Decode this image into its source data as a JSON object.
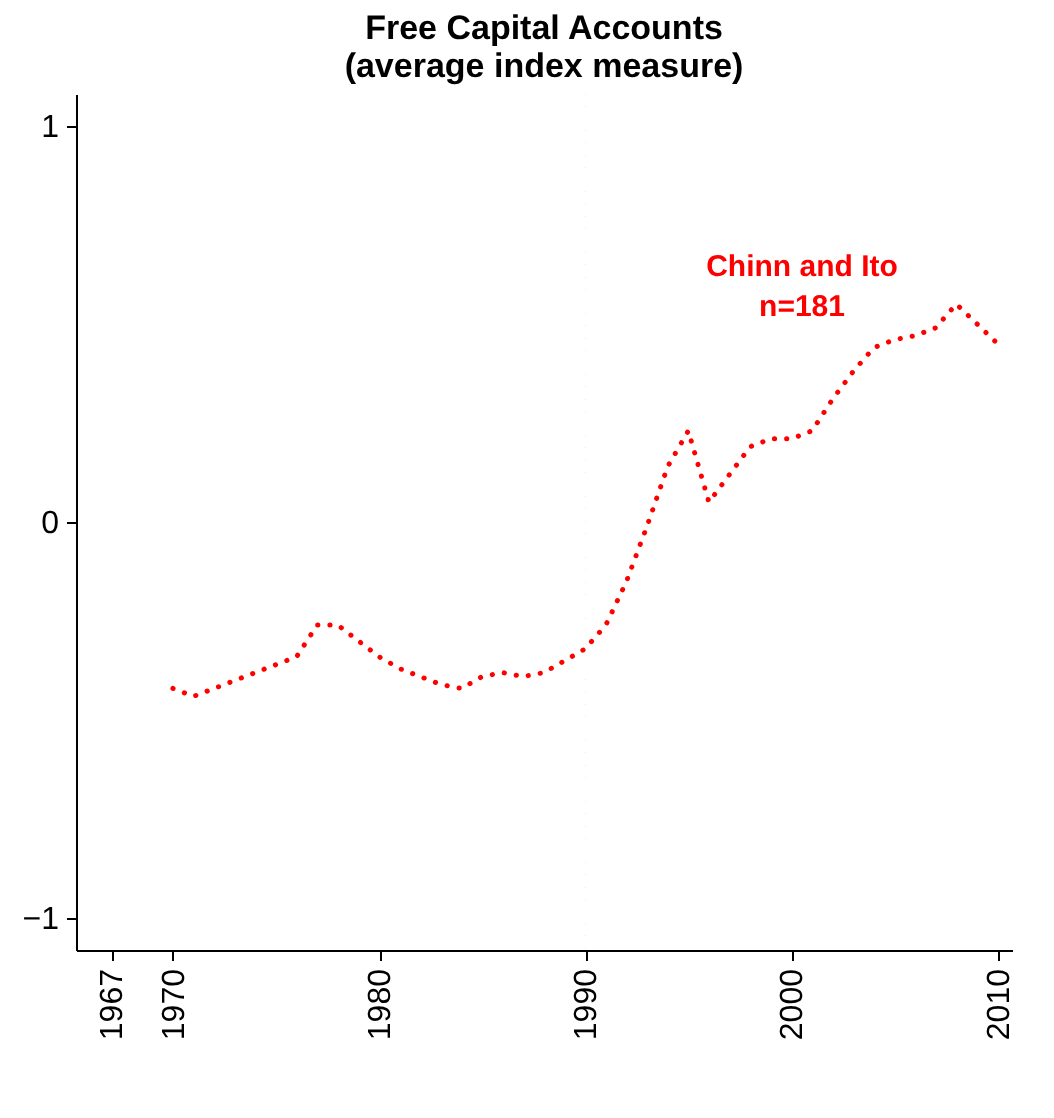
{
  "chart_data": {
    "type": "line",
    "title": "Free Capital Accounts\n(average index measure)",
    "x": [
      1970,
      1971,
      1973,
      1975,
      1976,
      1977,
      1978,
      1979,
      1980,
      1981,
      1983,
      1984,
      1985,
      1986,
      1987,
      1988,
      1989,
      1990,
      1991,
      1992,
      1993,
      1994,
      1995,
      1996,
      1997,
      1998,
      1999,
      2000,
      2001,
      2002,
      2003,
      2004,
      2005,
      2006,
      2007,
      2008,
      2009,
      2010
    ],
    "series": [
      {
        "color": "#ff0000",
        "line_style": "dotted",
        "values": [
          -0.42,
          -0.44,
          -0.4,
          -0.36,
          -0.34,
          -0.26,
          -0.26,
          -0.3,
          -0.34,
          -0.37,
          -0.41,
          -0.42,
          -0.39,
          -0.38,
          -0.39,
          -0.38,
          -0.35,
          -0.32,
          -0.26,
          -0.15,
          -0.01,
          0.14,
          0.23,
          0.05,
          0.12,
          0.19,
          0.21,
          0.21,
          0.23,
          0.31,
          0.38,
          0.44,
          0.46,
          0.47,
          0.49,
          0.55,
          0.5,
          0.45
        ]
      }
    ],
    "annotations": [
      "Chinn and Ito",
      "n=181"
    ],
    "xlim": [
      1965.3,
      2010.7
    ],
    "xticks": [
      1967,
      1970,
      1980,
      1990,
      2000,
      2010
    ],
    "ylim": [
      -1.08,
      1.08
    ],
    "yticks": [
      -1,
      0,
      1
    ],
    "ref_lines": [
      {
        "axis": "x",
        "value": 1990,
        "color": "#d3d3d3",
        "line_style": "dotted"
      }
    ],
    "grid": false
  }
}
